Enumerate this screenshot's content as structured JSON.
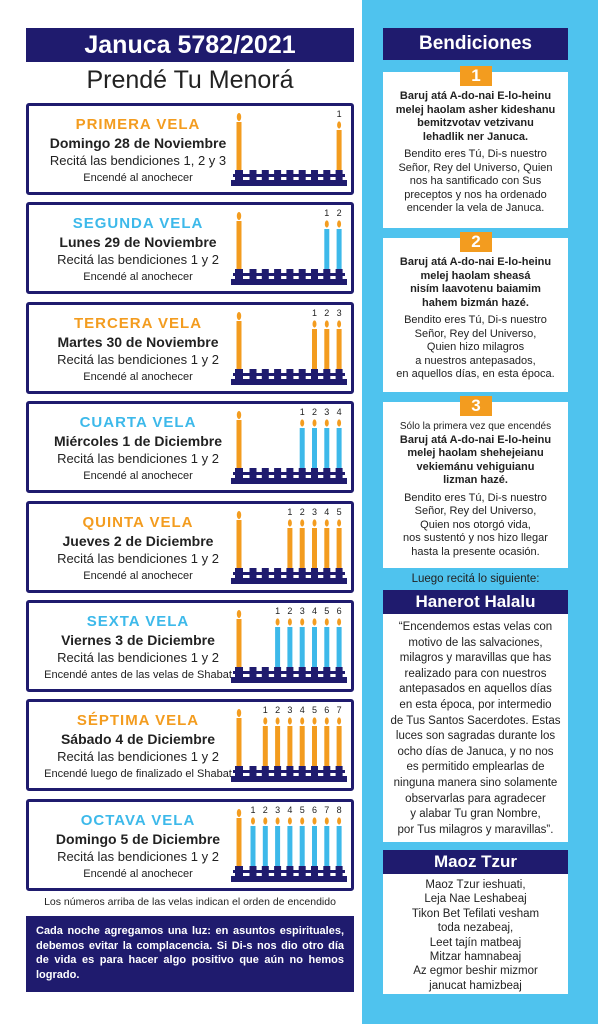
{
  "header": {
    "title": "Januca 5782/2021",
    "subtitle": "Prendé Tu Menorá"
  },
  "nights": [
    {
      "heading": "PRIMERA VELA",
      "date": "Domingo 28 de Noviembre",
      "blessings": "Recitá las bendiciones 1, 2 y 3",
      "note": "Encendé al anochecer",
      "candle_numbers": [
        1
      ],
      "color": "#f39c1f"
    },
    {
      "heading": "SEGUNDA VELA",
      "date": "Lunes 29 de Noviembre",
      "blessings": "Recitá las bendiciones 1 y 2",
      "note": "Encendé al anochecer",
      "candle_numbers": [
        1,
        2
      ],
      "color": "#3db9ea"
    },
    {
      "heading": "TERCERA VELA",
      "date": "Martes 30 de Noviembre",
      "blessings": "Recitá las bendiciones 1 y 2",
      "note": "Encendé al anochecer",
      "candle_numbers": [
        1,
        2,
        3
      ],
      "color": "#f39c1f"
    },
    {
      "heading": "CUARTA VELA",
      "date": "Miércoles 1 de Diciembre",
      "blessings": "Recitá las bendiciones 1 y 2",
      "note": "Encendé al anochecer",
      "candle_numbers": [
        1,
        2,
        3,
        4
      ],
      "color": "#3db9ea"
    },
    {
      "heading": "QUINTA VELA",
      "date": "Jueves 2 de Diciembre",
      "blessings": "Recitá las bendiciones 1 y 2",
      "note": "Encendé al anochecer",
      "candle_numbers": [
        1,
        2,
        3,
        4,
        5
      ],
      "color": "#f39c1f"
    },
    {
      "heading": "SEXTA VELA",
      "date": "Viernes 3 de Diciembre",
      "blessings": "Recitá las bendiciones 1 y 2",
      "note": "Encendé antes de las velas de Shabat",
      "candle_numbers": [
        1,
        2,
        3,
        4,
        5,
        6
      ],
      "color": "#3db9ea"
    },
    {
      "heading": "SÉPTIMA VELA",
      "date": "Sábado 4 de Diciembre",
      "blessings": "Recitá las bendiciones 1 y 2",
      "note": "Encendé luego de finalizado el Shabat",
      "candle_numbers": [
        1,
        2,
        3,
        4,
        5,
        6,
        7
      ],
      "color": "#f39c1f"
    },
    {
      "heading": "OCTAVA VELA",
      "date": "Domingo 5 de Diciembre",
      "blessings": "Recitá las bendiciones 1 y 2",
      "note": "Encendé al anochecer",
      "candle_numbers": [
        1,
        2,
        3,
        4,
        5,
        6,
        7,
        8
      ],
      "color": "#3db9ea"
    }
  ],
  "footnote": "Los números arriba de las velas indican el orden de encendido",
  "message": "Cada noche agregamos una luz: en asuntos espirituales, debemos evitar la complacencia. Si Di-s nos dio otro día de vida es para hacer algo positivo que aún no hemos logrado.",
  "bendiciones": {
    "title": "Bendiciones",
    "items": [
      {
        "number": 1,
        "hebrew": [
          "Baruj atá A-do-nai E-lo-heinu",
          "melej haolam asher kideshanu",
          "bemitzvotav vetzivanu",
          "lehadlik ner Januca."
        ],
        "spanish": [
          "Bendito eres Tú, Di-s nuestro",
          "Señor, Rey del Universo, Quien",
          "nos ha santificado con Sus",
          "preceptos y nos ha ordenado",
          "encender la vela de Januca."
        ]
      },
      {
        "number": 2,
        "hebrew": [
          "Baruj atá A-do-nai E-lo-heinu",
          "melej haolam sheasá",
          "nisím laavotenu baiamim",
          "hahem bizmán hazé."
        ],
        "spanish": [
          "Bendito eres Tú, Di-s nuestro",
          "Señor, Rey del Universo,",
          "Quien hizo milagros",
          "a nuestros antepasados,",
          "en aquellos días, en esta época."
        ]
      },
      {
        "number": 3,
        "preface": "Sólo la primera vez que encendés",
        "hebrew": [
          "Baruj atá A-do-nai E-lo-heinu",
          "melej haolam shehejeianu",
          "vekiemánu vehiguianu",
          "lizman hazé."
        ],
        "spanish": [
          "Bendito eres Tú, Di-s nuestro",
          "Señor, Rey del Universo,",
          "Quien nos otorgó vida,",
          "nos sustentó y nos hizo llegar",
          "hasta la presente ocasión."
        ]
      }
    ]
  },
  "then": "Luego recitá lo siguiente:",
  "hanerot": {
    "title": "Hanerot Halalu",
    "lines": [
      "“Encendemos estas velas con",
      "motivo de las salvaciones,",
      "milagros y maravillas que has",
      "realizado para con nuestros",
      "antepasados en aquellos días",
      "en esta época, por intermedio",
      "de Tus Santos Sacerdotes. Estas",
      "luces son sagradas durante los",
      "ocho días de Januca, y no nos",
      "es permitido emplearlas de",
      "ninguna manera sino solamente",
      "observarlas para agradecer",
      "y alabar Tu gran Nombre,",
      "por Tus milagros y maravillas”."
    ]
  },
  "maoz": {
    "title": "Maoz Tzur",
    "lines": [
      "Maoz Tzur ieshuati,",
      "Leja Nae Leshabeaj",
      "Tikon Bet Tefilati vesham",
      "toda nezabeaj,",
      "Leet tajín matbeaj",
      "Mitzar hamnabeaj",
      "Az egmor beshir mizmor",
      "janucat hamizbeaj"
    ]
  }
}
